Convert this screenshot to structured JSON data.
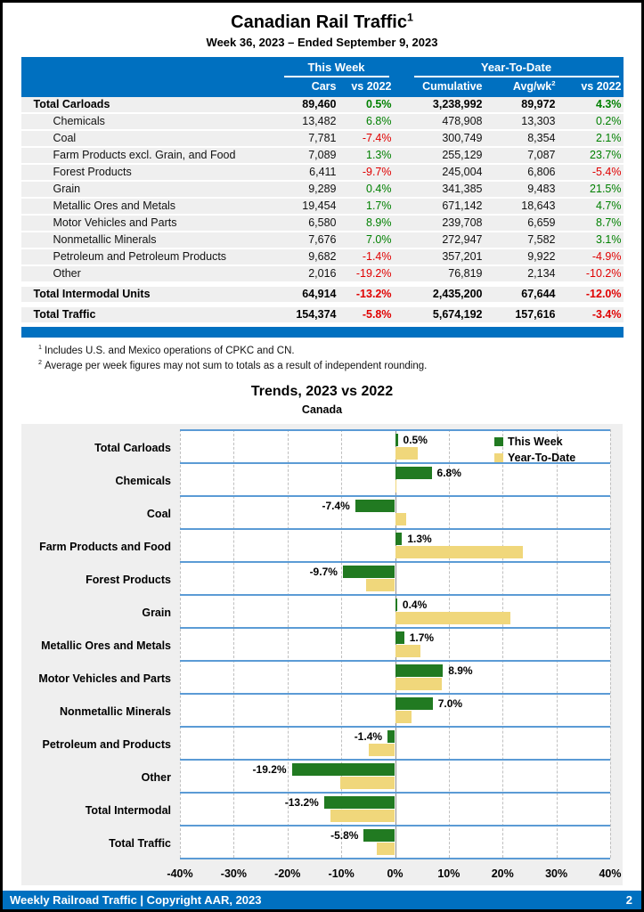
{
  "page": {
    "title": "Canadian Rail Traffic",
    "title_sup": "1",
    "subtitle": "Week 36, 2023 – Ended September 9, 2023"
  },
  "colors": {
    "brand_blue": "#0070C0",
    "positive_green": "#008000",
    "negative_red": "#E00000",
    "bar_green": "#217A21",
    "bar_tan": "#F0D77B",
    "band_line_blue": "#5B9BD5",
    "row_gray": "#EFEFEF"
  },
  "table": {
    "group_headers": {
      "this_week": "This Week",
      "year_to_date": "Year-To-Date"
    },
    "columns": {
      "cars": "Cars",
      "wk_vs": "vs 2022",
      "cumulative": "Cumulative",
      "avg_wk": "Avg/wk",
      "avg_wk_sup": "2",
      "ytd_vs": "vs 2022"
    },
    "rows": [
      {
        "label": "Total Carloads",
        "total": true,
        "cars": "89,460",
        "wk_vs": "0.5%",
        "cumulative": "3,238,992",
        "avg_wk": "89,972",
        "ytd_vs": "4.3%"
      },
      {
        "label": "Chemicals",
        "cars": "13,482",
        "wk_vs": "6.8%",
        "cumulative": "478,908",
        "avg_wk": "13,303",
        "ytd_vs": "0.2%"
      },
      {
        "label": "Coal",
        "cars": "7,781",
        "wk_vs": "-7.4%",
        "cumulative": "300,749",
        "avg_wk": "8,354",
        "ytd_vs": "2.1%"
      },
      {
        "label": "Farm Products excl. Grain, and Food",
        "cars": "7,089",
        "wk_vs": "1.3%",
        "cumulative": "255,129",
        "avg_wk": "7,087",
        "ytd_vs": "23.7%"
      },
      {
        "label": "Forest Products",
        "cars": "6,411",
        "wk_vs": "-9.7%",
        "cumulative": "245,004",
        "avg_wk": "6,806",
        "ytd_vs": "-5.4%"
      },
      {
        "label": "Grain",
        "cars": "9,289",
        "wk_vs": "0.4%",
        "cumulative": "341,385",
        "avg_wk": "9,483",
        "ytd_vs": "21.5%"
      },
      {
        "label": "Metallic Ores and Metals",
        "cars": "19,454",
        "wk_vs": "1.7%",
        "cumulative": "671,142",
        "avg_wk": "18,643",
        "ytd_vs": "4.7%"
      },
      {
        "label": "Motor Vehicles and Parts",
        "cars": "6,580",
        "wk_vs": "8.9%",
        "cumulative": "239,708",
        "avg_wk": "6,659",
        "ytd_vs": "8.7%"
      },
      {
        "label": "Nonmetallic Minerals",
        "cars": "7,676",
        "wk_vs": "7.0%",
        "cumulative": "272,947",
        "avg_wk": "7,582",
        "ytd_vs": "3.1%"
      },
      {
        "label": "Petroleum and Petroleum Products",
        "cars": "9,682",
        "wk_vs": "-1.4%",
        "cumulative": "357,201",
        "avg_wk": "9,922",
        "ytd_vs": "-4.9%"
      },
      {
        "label": "Other",
        "cars": "2,016",
        "wk_vs": "-19.2%",
        "cumulative": "76,819",
        "avg_wk": "2,134",
        "ytd_vs": "-10.2%"
      },
      {
        "label": "Total Intermodal Units",
        "total": true,
        "gap_before": true,
        "cars": "64,914",
        "wk_vs": "-13.2%",
        "cumulative": "2,435,200",
        "avg_wk": "67,644",
        "ytd_vs": "-12.0%"
      },
      {
        "label": "Total Traffic",
        "total": true,
        "gap_before": true,
        "cars": "154,374",
        "wk_vs": "-5.8%",
        "cumulative": "5,674,192",
        "avg_wk": "157,616",
        "ytd_vs": "-3.4%"
      }
    ]
  },
  "footnotes": [
    {
      "sup": "1",
      "text": "Includes U.S. and Mexico operations of CPKC and CN."
    },
    {
      "sup": "2",
      "text": "Average per week figures may not sum to totals as a result of independent rounding."
    }
  ],
  "chart_data": {
    "type": "bar",
    "orientation": "horizontal",
    "title": "Trends, 2023 vs 2022",
    "subtitle": "Canada",
    "categories": [
      "Total Carloads",
      "Chemicals",
      "Coal",
      "Farm Products and Food",
      "Forest Products",
      "Grain",
      "Metallic Ores and Metals",
      "Motor Vehicles and Parts",
      "Nonmetallic Minerals",
      "Petroleum and Products",
      "Other",
      "Total Intermodal",
      "Total Traffic"
    ],
    "series": [
      {
        "name": "This Week",
        "color": "#217A21",
        "values": [
          0.5,
          6.8,
          -7.4,
          1.3,
          -9.7,
          0.4,
          1.7,
          8.9,
          7.0,
          -1.4,
          -19.2,
          -13.2,
          -5.8
        ]
      },
      {
        "name": "Year-To-Date",
        "color": "#F0D77B",
        "values": [
          4.3,
          0.2,
          2.1,
          23.7,
          -5.4,
          21.5,
          4.7,
          8.7,
          3.1,
          -4.9,
          -10.2,
          -12.0,
          -3.4
        ]
      }
    ],
    "bar_labels": [
      "0.5%",
      "6.8%",
      "-7.4%",
      "1.3%",
      "-9.7%",
      "0.4%",
      "1.7%",
      "8.9%",
      "7.0%",
      "-1.4%",
      "-19.2%",
      "-13.2%",
      "-5.8%"
    ],
    "xlim": [
      -40,
      40
    ],
    "xticks": [
      "-40%",
      "-30%",
      "-20%",
      "-10%",
      "0%",
      "10%",
      "20%",
      "30%",
      "40%"
    ],
    "grid": "vertical-dashed",
    "legend_position": "top-right"
  },
  "footer": {
    "left": "Weekly Railroad Traffic | Copyright AAR, 2023",
    "page": "2"
  }
}
